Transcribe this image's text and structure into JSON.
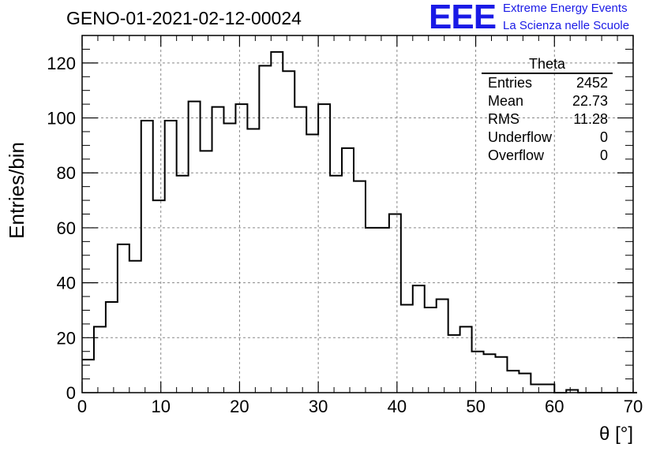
{
  "run_title": "GENO-01-2021-02-12-00024",
  "logo": {
    "text": "EEE",
    "line1": "Extreme Energy Events",
    "line2": "La Scienza nelle Scuole",
    "color": "#1a1ae6"
  },
  "stats_box": {
    "title": "Theta",
    "rows": [
      {
        "label": "Entries",
        "value": "2452"
      },
      {
        "label": "Mean",
        "value": "22.73"
      },
      {
        "label": "RMS",
        "value": "11.28"
      },
      {
        "label": "Underflow",
        "value": "0"
      },
      {
        "label": "Overflow",
        "value": "0"
      }
    ]
  },
  "chart_data": {
    "type": "histogram",
    "xlabel": "θ [°]",
    "ylabel": "Entries/bin",
    "xlim": [
      0,
      70
    ],
    "ylim": [
      0,
      130
    ],
    "grid": true,
    "bin_width": 1.5,
    "x_ticks": [
      "0",
      "10",
      "20",
      "30",
      "40",
      "50",
      "60",
      "70"
    ],
    "y_ticks": [
      "0",
      "20",
      "40",
      "60",
      "80",
      "100",
      "120"
    ],
    "bin_edges_start": 0,
    "values": [
      12,
      24,
      33,
      54,
      48,
      99,
      70,
      99,
      79,
      106,
      88,
      104,
      98,
      105,
      96,
      119,
      124,
      117,
      104,
      94,
      105,
      79,
      89,
      77,
      60,
      60,
      65,
      32,
      39,
      31,
      34,
      21,
      24,
      15,
      14,
      13,
      8,
      7,
      3,
      3,
      0,
      1,
      0,
      0,
      0,
      0,
      0
    ]
  }
}
